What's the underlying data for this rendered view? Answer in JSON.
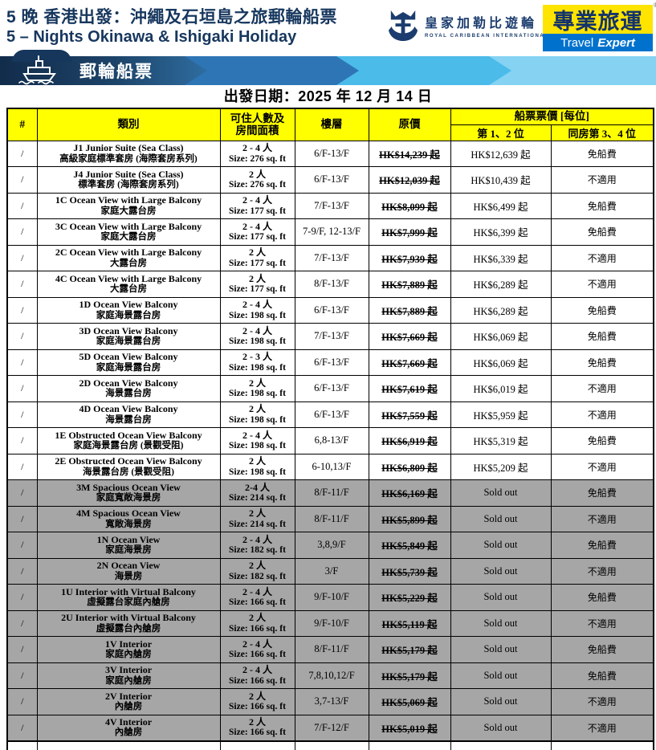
{
  "header": {
    "title_zh": "5 晚 香港出發：沖繩及石垣島之旅郵輪船票",
    "title_en": "5 – Nights Okinawa & Ishigaki Holiday",
    "rci_logo": {
      "name_zh": "皇家加勒比遊輪",
      "name_en": "ROYAL CARIBBEAN INTERNATIONAL"
    },
    "travel_expert_logo": {
      "name_zh": "專業旅運",
      "word1": "Travel",
      "word2": "Expert",
      "reg": "®"
    }
  },
  "banner": {
    "label": "郵輪船票"
  },
  "departure": {
    "label": "出發日期：2025 年 12 月 14 日"
  },
  "colors": {
    "title_navy": "#17375E",
    "header_yellow": "#FFFF00",
    "soldout_gray": "#A6A6A6",
    "banner_navy": "#16365C",
    "banner_blue": "#2E75B6",
    "banner_light_blue": "#4BBBE9",
    "banner_pale_blue": "#85D2F3",
    "travel_expert_yellow": "#FFE400",
    "travel_expert_blue": "#0072CE"
  },
  "table": {
    "headers": {
      "num": "#",
      "category": "類別",
      "occupancy_l1": "可住人數及",
      "occupancy_l2": "房間面積",
      "floor": "樓層",
      "original_price": "原價",
      "fare_group": "船票票價 [每位]",
      "fare_1_2": "第 1、2 位",
      "fare_3_4": "同房第 3、4 位"
    },
    "rows": [
      {
        "num": "/",
        "category_en": "J1 Junior Suite (Sea Class)",
        "category_zh": "高級家庭標準套房 (海際套房系列)",
        "occupancy": "2 - 4 人",
        "size": "Size: 276 sq. ft",
        "floors": "6/F-13/F",
        "original_price": "HK$14,239 起",
        "fare_1_2": "HK$12,639 起",
        "fare_3_4": "免船費",
        "sold_out": false
      },
      {
        "num": "/",
        "category_en": "J4 Junior Suite (Sea Class)",
        "category_zh": "標準套房 (海際套房系列)",
        "occupancy": "2 人",
        "size": "Size: 276 sq. ft",
        "floors": "6/F-13/F",
        "original_price": "HK$12,039 起",
        "fare_1_2": "HK$10,439 起",
        "fare_3_4": "不適用",
        "sold_out": false
      },
      {
        "num": "/",
        "category_en": "1C Ocean View with Large Balcony",
        "category_zh": "家庭大露台房",
        "occupancy": "2 - 4 人",
        "size": "Size: 177 sq. ft",
        "floors": "7/F-13/F",
        "original_price": "HK$8,099 起",
        "fare_1_2": "HK$6,499 起",
        "fare_3_4": "免船費",
        "sold_out": false
      },
      {
        "num": "/",
        "category_en": "3C Ocean View with Large Balcony",
        "category_zh": "家庭大露台房",
        "occupancy": "2 - 4 人",
        "size": "Size: 177 sq. ft",
        "floors": "7-9/F, 12-13/F",
        "original_price": "HK$7,999 起",
        "fare_1_2": "HK$6,399 起",
        "fare_3_4": "免船費",
        "sold_out": false
      },
      {
        "num": "/",
        "category_en": "2C Ocean View with Large Balcony",
        "category_zh": "大露台房",
        "occupancy": "2 人",
        "size": "Size: 177 sq. ft",
        "floors": "7/F-13/F",
        "original_price": "HK$7,939 起",
        "fare_1_2": "HK$6,339 起",
        "fare_3_4": "不適用",
        "sold_out": false
      },
      {
        "num": "/",
        "category_en": "4C Ocean View with Large Balcony",
        "category_zh": "大露台房",
        "occupancy": "2 人",
        "size": "Size: 177 sq. ft",
        "floors": "8/F-13/F",
        "original_price": "HK$7,889 起",
        "fare_1_2": "HK$6,289 起",
        "fare_3_4": "不適用",
        "sold_out": false
      },
      {
        "num": "/",
        "category_en": "1D Ocean View Balcony",
        "category_zh": "家庭海景露台房",
        "occupancy": "2 - 4 人",
        "size": "Size: 198 sq. ft",
        "floors": "6/F-13/F",
        "original_price": "HK$7,889 起",
        "fare_1_2": "HK$6,289 起",
        "fare_3_4": "免船費",
        "sold_out": false
      },
      {
        "num": "/",
        "category_en": "3D Ocean View Balcony",
        "category_zh": "家庭海景露台房",
        "occupancy": "2 - 4 人",
        "size": "Size: 198 sq. ft",
        "floors": "7/F-13/F",
        "original_price": "HK$7,669 起",
        "fare_1_2": "HK$6,069 起",
        "fare_3_4": "免船費",
        "sold_out": false
      },
      {
        "num": "/",
        "category_en": "5D Ocean View Balcony",
        "category_zh": "家庭海景露台房",
        "occupancy": "2 - 3 人",
        "size": "Size: 198 sq. ft",
        "floors": "6/F-13/F",
        "original_price": "HK$7,669 起",
        "fare_1_2": "HK$6,069 起",
        "fare_3_4": "免船費",
        "sold_out": false
      },
      {
        "num": "/",
        "category_en": "2D Ocean View Balcony",
        "category_zh": "海景露台房",
        "occupancy": "2 人",
        "size": "Size: 198 sq. ft",
        "floors": "6/F-13/F",
        "original_price": "HK$7,619 起",
        "fare_1_2": "HK$6,019 起",
        "fare_3_4": "不適用",
        "sold_out": false
      },
      {
        "num": "/",
        "category_en": "4D Ocean View Balcony",
        "category_zh": "海景露台房",
        "occupancy": "2 人",
        "size": "Size: 198 sq. ft",
        "floors": "6/F-13/F",
        "original_price": "HK$7,559 起",
        "fare_1_2": "HK$5,959 起",
        "fare_3_4": "不適用",
        "sold_out": false
      },
      {
        "num": "/",
        "category_en": "1E Obstructed Ocean View Balcony",
        "category_zh": "家庭海景露台房 (景觀受阻)",
        "occupancy": "2 - 4 人",
        "size": "Size: 198 sq. ft",
        "floors": "6,8-13/F",
        "original_price": "HK$6,919 起",
        "fare_1_2": "HK$5,319 起",
        "fare_3_4": "免船費",
        "sold_out": false
      },
      {
        "num": "/",
        "category_en": "2E Obstructed Ocean View Balcony",
        "category_zh": "海景露台房 (景觀受阻)",
        "occupancy": "2 人",
        "size": "Size: 198 sq. ft",
        "floors": "6-10,13/F",
        "original_price": "HK$6,809 起",
        "fare_1_2": "HK$5,209 起",
        "fare_3_4": "不適用",
        "sold_out": false
      },
      {
        "num": "/",
        "category_en": "3M Spacious Ocean View",
        "category_zh": "家庭寬敞海景房",
        "occupancy": "2-4 人",
        "size": "Size: 214 sq. ft",
        "floors": "8/F-11/F",
        "original_price": "HK$6,169 起",
        "fare_1_2": "Sold out",
        "fare_3_4": "免船費",
        "sold_out": true
      },
      {
        "num": "/",
        "category_en": "4M Spacious Ocean View",
        "category_zh": "寬敞海景房",
        "occupancy": "2 人",
        "size": "Size: 214 sq. ft",
        "floors": "8/F-11/F",
        "original_price": "HK$5,899 起",
        "fare_1_2": "Sold out",
        "fare_3_4": "不適用",
        "sold_out": true
      },
      {
        "num": "/",
        "category_en": "1N Ocean View",
        "category_zh": "家庭海景房",
        "occupancy": "2 - 4 人",
        "size": "Size: 182 sq. ft",
        "floors": "3,8,9/F",
        "original_price": "HK$5,849 起",
        "fare_1_2": "Sold out",
        "fare_3_4": "免船費",
        "sold_out": true
      },
      {
        "num": "/",
        "category_en": "2N Ocean View",
        "category_zh": "海景房",
        "occupancy": "2 人",
        "size": "Size: 182 sq. ft",
        "floors": "3/F",
        "original_price": "HK$5,739 起",
        "fare_1_2": "Sold out",
        "fare_3_4": "不適用",
        "sold_out": true
      },
      {
        "num": "/",
        "category_en": "1U Interior with Virtual Balcony",
        "category_zh": "虛擬露台家庭內艙房",
        "occupancy": "2 - 4 人",
        "size": "Size: 166 sq. ft",
        "floors": "9/F-10/F",
        "original_price": "HK$5,229 起",
        "fare_1_2": "Sold out",
        "fare_3_4": "免船費",
        "sold_out": true
      },
      {
        "num": "/",
        "category_en": "2U Interior with Virtual Balcony",
        "category_zh": "虛擬露台內艙房",
        "occupancy": "2 人",
        "size": "Size: 166 sq. ft",
        "floors": "9/F-10/F",
        "original_price": "HK$5,119 起",
        "fare_1_2": "Sold out",
        "fare_3_4": "不適用",
        "sold_out": true
      },
      {
        "num": "/",
        "category_en": "1V Interior",
        "category_zh": "家庭內艙房",
        "occupancy": "2 - 4 人",
        "size": "Size: 166 sq. ft",
        "floors": "8/F-11/F",
        "original_price": "HK$5,179 起",
        "fare_1_2": "Sold out",
        "fare_3_4": "免船費",
        "sold_out": true
      },
      {
        "num": "/",
        "category_en": "3V Interior",
        "category_zh": "家庭內艙房",
        "occupancy": "2 - 4 人",
        "size": "Size: 166 sq. ft",
        "floors": "7,8,10,12/F",
        "original_price": "HK$5,179 起",
        "fare_1_2": "Sold out",
        "fare_3_4": "免船費",
        "sold_out": true
      },
      {
        "num": "/",
        "category_en": "2V Interior",
        "category_zh": "內艙房",
        "occupancy": "2 人",
        "size": "Size: 166 sq. ft",
        "floors": "3,7-13/F",
        "original_price": "HK$5,069 起",
        "fare_1_2": "Sold out",
        "fare_3_4": "不適用",
        "sold_out": true
      },
      {
        "num": "/",
        "category_en": "4V Interior",
        "category_zh": "內艙房",
        "occupancy": "2 人",
        "size": "Size: 166 sq. ft",
        "floors": "7/F-12/F",
        "original_price": "HK$5,019 起",
        "fare_1_2": "Sold out",
        "fare_3_4": "不適用",
        "sold_out": true
      }
    ]
  }
}
